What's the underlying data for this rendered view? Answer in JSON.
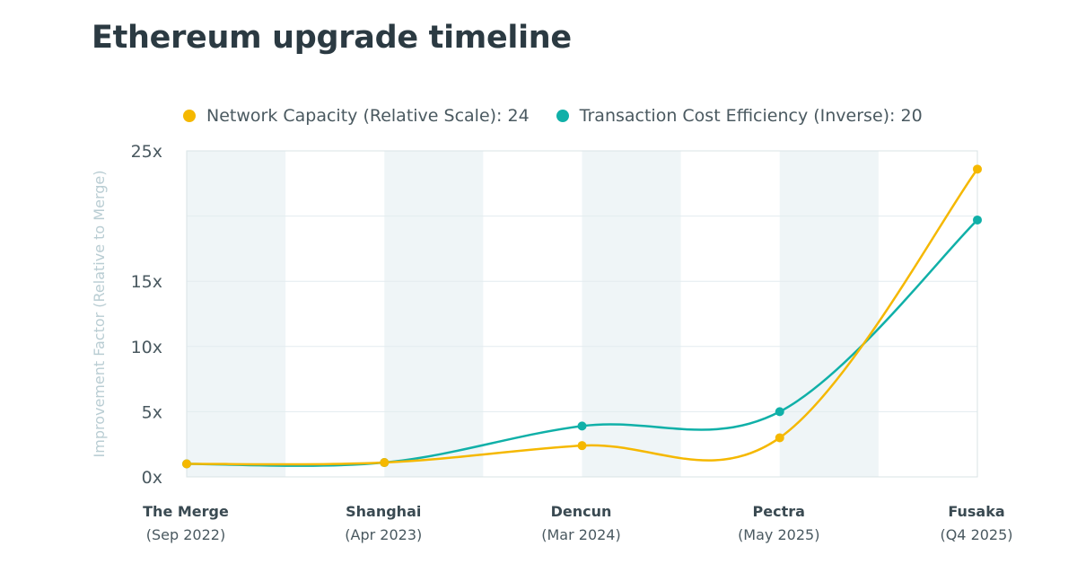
{
  "chart_data": {
    "type": "line",
    "title": "Ethereum upgrade timeline",
    "ylabel": "Improvement Factor (Relative to Merge)",
    "xlabel": "",
    "ylim": [
      0,
      25
    ],
    "yticks": [
      {
        "value": 0,
        "label": "0x"
      },
      {
        "value": 5,
        "label": "5x"
      },
      {
        "value": 10,
        "label": "10x"
      },
      {
        "value": 15,
        "label": "15x"
      },
      {
        "value": 25,
        "label": "25x"
      }
    ],
    "categories": [
      {
        "name": "The Merge",
        "date": "(Sep 2022)"
      },
      {
        "name": "Shanghai",
        "date": "(Apr 2023)"
      },
      {
        "name": "Dencun",
        "date": "(Mar 2024)"
      },
      {
        "name": "Pectra",
        "date": "(May 2025)"
      },
      {
        "name": "Fusaka",
        "date": "(Q4 2025)"
      }
    ],
    "series": [
      {
        "name": "Network Capacity (Relative Scale)",
        "legend_label": "Network Capacity (Relative Scale): 24",
        "color": "#f5b800",
        "values": [
          1,
          1.1,
          2.4,
          3,
          23.6
        ]
      },
      {
        "name": "Transaction Cost Efficiency (Inverse)",
        "legend_label": "Transaction Cost Efficiency (Inverse): 20",
        "color": "#10b0a8",
        "values": [
          1,
          1.1,
          3.9,
          5,
          19.7
        ]
      }
    ],
    "grid": true,
    "legend_position": "top"
  }
}
